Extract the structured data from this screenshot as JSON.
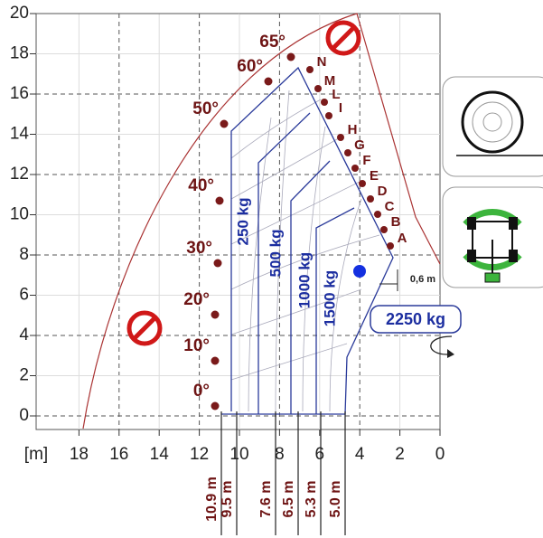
{
  "axis": {
    "unit": "[m]",
    "xticks": [
      18,
      16,
      14,
      12,
      10,
      8,
      6,
      4,
      2,
      0
    ],
    "yticks": [
      0,
      2,
      4,
      6,
      8,
      10,
      12,
      14,
      16,
      18,
      20
    ]
  },
  "angles": [
    "0°",
    "10°",
    "20°",
    "30°",
    "40°",
    "50°",
    "60°",
    "65°"
  ],
  "sectors": [
    "A",
    "B",
    "C",
    "D",
    "E",
    "F",
    "G",
    "H",
    "I",
    "L",
    "M",
    "N"
  ],
  "loads": [
    "250 kg",
    "500 kg",
    "1000 kg",
    "1500 kg"
  ],
  "reaches": [
    "10.9 m",
    "9.5 m",
    "7.6 m",
    "6.5 m",
    "5.3 m",
    "5.0 m"
  ],
  "rated_load": "2250 kg",
  "offset": "0,6 m"
}
